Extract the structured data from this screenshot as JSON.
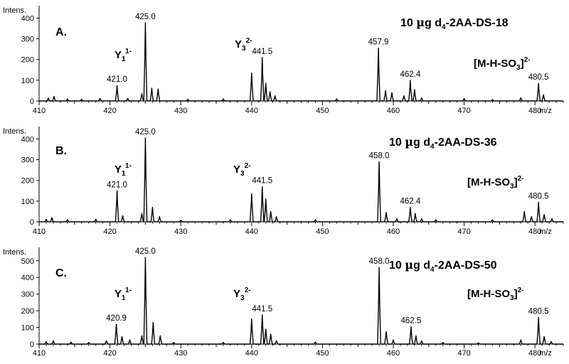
{
  "chart_data": [
    {
      "type": "line",
      "panel_letter": "A.",
      "title_parts": {
        "a": "10 ",
        "mu": "µ",
        "b": "g d",
        "sub": "4",
        "c": "-2AA-DS-18"
      },
      "ylabel": "Intens.",
      "xlabel": "m/z",
      "xlim": [
        410,
        484
      ],
      "ylim": [
        0,
        460
      ],
      "y_ticks": [
        0,
        100,
        200,
        300,
        400
      ],
      "x_ticks": [
        410,
        420,
        430,
        440,
        450,
        460,
        470,
        480
      ],
      "peaks": [
        {
          "x": 411.3,
          "y": 15
        },
        {
          "x": 412.1,
          "y": 22
        },
        {
          "x": 414.0,
          "y": 10
        },
        {
          "x": 416.0,
          "y": 8
        },
        {
          "x": 418.6,
          "y": 12
        },
        {
          "x": 421.0,
          "y": 75
        },
        {
          "x": 422.5,
          "y": 12
        },
        {
          "x": 424.5,
          "y": 35
        },
        {
          "x": 425.0,
          "y": 378
        },
        {
          "x": 425.9,
          "y": 62
        },
        {
          "x": 426.8,
          "y": 58
        },
        {
          "x": 431.0,
          "y": 8
        },
        {
          "x": 436.0,
          "y": 10
        },
        {
          "x": 440.0,
          "y": 135
        },
        {
          "x": 441.5,
          "y": 210
        },
        {
          "x": 442.0,
          "y": 85
        },
        {
          "x": 442.6,
          "y": 45
        },
        {
          "x": 443.3,
          "y": 25
        },
        {
          "x": 452.0,
          "y": 10
        },
        {
          "x": 457.9,
          "y": 255
        },
        {
          "x": 458.9,
          "y": 50
        },
        {
          "x": 459.8,
          "y": 40
        },
        {
          "x": 461.5,
          "y": 25
        },
        {
          "x": 462.4,
          "y": 100
        },
        {
          "x": 463.0,
          "y": 55
        },
        {
          "x": 464.0,
          "y": 15
        },
        {
          "x": 470.0,
          "y": 12
        },
        {
          "x": 474.0,
          "y": 6
        },
        {
          "x": 478.0,
          "y": 15
        },
        {
          "x": 480.5,
          "y": 85
        },
        {
          "x": 481.2,
          "y": 30
        }
      ],
      "peak_labels": [
        {
          "x": 421.0,
          "y": 75,
          "text": "421.0"
        },
        {
          "x": 425.0,
          "y": 378,
          "text": "425.0"
        },
        {
          "x": 441.5,
          "y": 210,
          "text": "441.5"
        },
        {
          "x": 457.9,
          "y": 255,
          "text": "457.9"
        },
        {
          "x": 462.4,
          "y": 100,
          "text": "462.4"
        },
        {
          "x": 480.5,
          "y": 85,
          "text": "480.5"
        }
      ],
      "ion_labels": {
        "y1": {
          "base": "Y",
          "sub": "1",
          "sup": "1-"
        },
        "y3": {
          "base": "Y",
          "sub": "3",
          "sup": "2-"
        },
        "m": {
          "a": "[M-H-SO",
          "sub": "3",
          "b": "]",
          "sup": "2-"
        }
      }
    },
    {
      "type": "line",
      "panel_letter": "B.",
      "title_parts": {
        "a": "10 ",
        "mu": "µ",
        "b": "g d",
        "sub": "4",
        "c": "-2AA-DS-36"
      },
      "ylabel": "Intens.",
      "xlabel": "m/z",
      "xlim": [
        410,
        484
      ],
      "ylim": [
        0,
        460
      ],
      "y_ticks": [
        0,
        100,
        200,
        300,
        400
      ],
      "x_ticks": [
        410,
        420,
        430,
        440,
        450,
        460,
        470,
        480
      ],
      "peaks": [
        {
          "x": 411.0,
          "y": 12
        },
        {
          "x": 411.8,
          "y": 20
        },
        {
          "x": 414.0,
          "y": 10
        },
        {
          "x": 418.0,
          "y": 12
        },
        {
          "x": 421.0,
          "y": 150
        },
        {
          "x": 421.8,
          "y": 30
        },
        {
          "x": 424.5,
          "y": 40
        },
        {
          "x": 425.0,
          "y": 405
        },
        {
          "x": 426.0,
          "y": 70
        },
        {
          "x": 427.0,
          "y": 25
        },
        {
          "x": 430.0,
          "y": 8
        },
        {
          "x": 437.0,
          "y": 10
        },
        {
          "x": 440.0,
          "y": 135
        },
        {
          "x": 441.5,
          "y": 170
        },
        {
          "x": 442.0,
          "y": 110
        },
        {
          "x": 442.7,
          "y": 50
        },
        {
          "x": 443.5,
          "y": 25
        },
        {
          "x": 449.0,
          "y": 10
        },
        {
          "x": 458.0,
          "y": 290
        },
        {
          "x": 459.0,
          "y": 45
        },
        {
          "x": 460.5,
          "y": 15
        },
        {
          "x": 462.4,
          "y": 70
        },
        {
          "x": 463.1,
          "y": 40
        },
        {
          "x": 464.0,
          "y": 15
        },
        {
          "x": 466.0,
          "y": 10
        },
        {
          "x": 474.0,
          "y": 10
        },
        {
          "x": 478.5,
          "y": 50
        },
        {
          "x": 479.5,
          "y": 25
        },
        {
          "x": 480.5,
          "y": 95
        },
        {
          "x": 481.3,
          "y": 35
        },
        {
          "x": 482.4,
          "y": 15
        }
      ],
      "peak_labels": [
        {
          "x": 421.0,
          "y": 150,
          "text": "421.0"
        },
        {
          "x": 425.0,
          "y": 405,
          "text": "425.0"
        },
        {
          "x": 441.5,
          "y": 170,
          "text": "441.5"
        },
        {
          "x": 458.0,
          "y": 290,
          "text": "458.0"
        },
        {
          "x": 462.4,
          "y": 70,
          "text": "462.4"
        },
        {
          "x": 480.5,
          "y": 95,
          "text": "480.5"
        }
      ],
      "ion_labels": {
        "y1": {
          "base": "Y",
          "sub": "1",
          "sup": "1-"
        },
        "y3": {
          "base": "Y",
          "sub": "3",
          "sup": "2-"
        },
        "m": {
          "a": "[M-H-SO",
          "sub": "3",
          "b": "]",
          "sup": "2-"
        }
      }
    },
    {
      "type": "line",
      "panel_letter": "C.",
      "title_parts": {
        "a": "10 ",
        "mu": "µ",
        "b": "g d",
        "sub": "4",
        "c": "-2AA-DS-50"
      },
      "ylabel": "Intens.",
      "xlabel": "m/z",
      "xlim": [
        410,
        484
      ],
      "ylim": [
        0,
        580
      ],
      "y_ticks": [
        0,
        100,
        200,
        300,
        400,
        500
      ],
      "x_ticks": [
        410,
        420,
        430,
        440,
        450,
        460,
        470,
        480
      ],
      "peaks": [
        {
          "x": 411.0,
          "y": 15
        },
        {
          "x": 412.0,
          "y": 20
        },
        {
          "x": 414.5,
          "y": 12
        },
        {
          "x": 417.0,
          "y": 10
        },
        {
          "x": 419.5,
          "y": 20
        },
        {
          "x": 420.9,
          "y": 120
        },
        {
          "x": 421.7,
          "y": 45
        },
        {
          "x": 422.8,
          "y": 25
        },
        {
          "x": 424.5,
          "y": 50
        },
        {
          "x": 425.0,
          "y": 520
        },
        {
          "x": 426.1,
          "y": 130
        },
        {
          "x": 427.1,
          "y": 50
        },
        {
          "x": 429.0,
          "y": 10
        },
        {
          "x": 436.0,
          "y": 10
        },
        {
          "x": 440.0,
          "y": 150
        },
        {
          "x": 441.5,
          "y": 175
        },
        {
          "x": 442.0,
          "y": 90
        },
        {
          "x": 442.7,
          "y": 60
        },
        {
          "x": 443.5,
          "y": 20
        },
        {
          "x": 449.0,
          "y": 12
        },
        {
          "x": 458.0,
          "y": 460
        },
        {
          "x": 459.0,
          "y": 75
        },
        {
          "x": 460.0,
          "y": 25
        },
        {
          "x": 462.5,
          "y": 105
        },
        {
          "x": 463.2,
          "y": 50
        },
        {
          "x": 464.0,
          "y": 20
        },
        {
          "x": 467.0,
          "y": 10
        },
        {
          "x": 472.0,
          "y": 8
        },
        {
          "x": 478.0,
          "y": 25
        },
        {
          "x": 480.5,
          "y": 160
        },
        {
          "x": 481.3,
          "y": 45
        },
        {
          "x": 482.3,
          "y": 15
        }
      ],
      "peak_labels": [
        {
          "x": 420.9,
          "y": 120,
          "text": "420.9"
        },
        {
          "x": 425.0,
          "y": 520,
          "text": "425.0"
        },
        {
          "x": 441.5,
          "y": 175,
          "text": "441.5"
        },
        {
          "x": 458.0,
          "y": 460,
          "text": "458.0"
        },
        {
          "x": 462.5,
          "y": 105,
          "text": "462.5"
        },
        {
          "x": 480.5,
          "y": 160,
          "text": "480.5"
        }
      ],
      "ion_labels": {
        "y1": {
          "base": "Y",
          "sub": "1",
          "sup": "1-"
        },
        "y3": {
          "base": "Y",
          "sub": "3",
          "sup": "2-"
        },
        "m": {
          "a": "[M-H-SO",
          "sub": "3",
          "b": "]",
          "sup": "2-"
        }
      }
    }
  ]
}
